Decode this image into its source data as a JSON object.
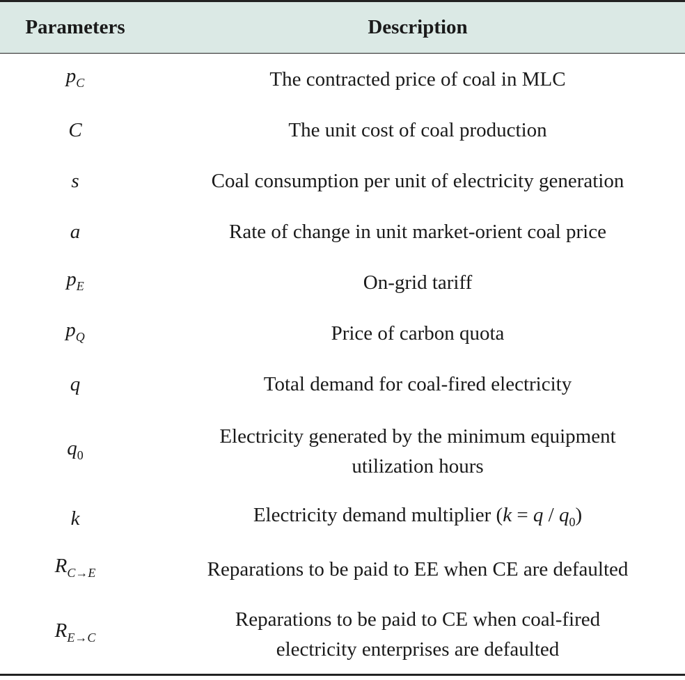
{
  "table": {
    "headers": {
      "parameters": "Parameters",
      "description": "Description"
    },
    "rows": [
      {
        "base": "p",
        "sub": "C",
        "description": "The contracted price of coal in MLC"
      },
      {
        "base": "C",
        "sub": "",
        "description": "The unit cost of coal production"
      },
      {
        "base": "s",
        "sub": "",
        "description": "Coal consumption per unit of electricity generation"
      },
      {
        "base": "a",
        "sub": "",
        "description": "Rate of change in unit market-orient coal price"
      },
      {
        "base": "p",
        "sub": "E",
        "description": "On-grid tariff"
      },
      {
        "base": "p",
        "sub": "Q",
        "description": "Price of carbon quota"
      },
      {
        "base": "q",
        "sub": "",
        "description": "Total demand for coal-fired electricity"
      },
      {
        "base": "q",
        "sub": "0",
        "description_line1": "Electricity generated by the minimum equipment",
        "description_line2": "utilization hours"
      },
      {
        "base": "k",
        "sub": "",
        "description_prefix": "Electricity demand multiplier (",
        "formula_k": "k",
        "formula_eq": " = ",
        "formula_q": "q",
        "formula_div": " / ",
        "formula_q0": "q",
        "formula_q0_sub": "0",
        "description_suffix": ")"
      },
      {
        "base": "R",
        "sub": "C→E",
        "description": "Reparations to be paid to EE when CE are defaulted"
      },
      {
        "base": "R",
        "sub": "E→C",
        "description_line1": "Reparations to be paid to CE when coal-fired",
        "description_line2": "electricity enterprises are defaulted"
      }
    ]
  }
}
